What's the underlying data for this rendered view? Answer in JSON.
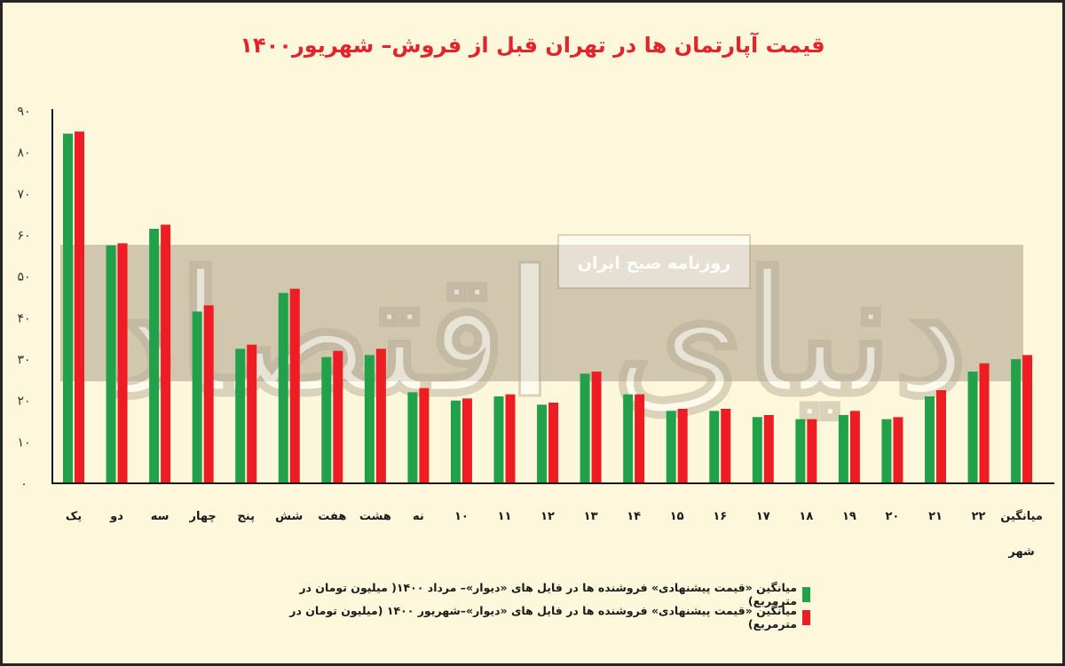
{
  "chart_data": {
    "type": "bar",
    "title": "قیمت آپارتمان ها در تهران قبل از فروش– شهریور۱۴۰۰",
    "categories": [
      "یک",
      "دو",
      "سه",
      "چهار",
      "پنج",
      "شش",
      "هفت",
      "هشت",
      "نه",
      "۱۰",
      "۱۱",
      "۱۲",
      "۱۳",
      "۱۴",
      "۱۵",
      "۱۶",
      "۱۷",
      "۱۸",
      "۱۹",
      "۲۰",
      "۲۱",
      "۲۲",
      "میانگین شهر"
    ],
    "series": [
      {
        "name": "میانگین «قیمت پیشنهادی» فروشنده ها در فایل های «دیوار»– مرداد ۱۴۰۰( میلیون تومان در مترمربع)",
        "color": "#21a24a",
        "values": [
          84.5,
          57.5,
          61.5,
          41.5,
          32.5,
          46,
          30.5,
          31,
          22,
          20,
          21,
          19,
          26.5,
          21.5,
          17.5,
          17.5,
          16,
          15.5,
          16.5,
          15.5,
          21,
          27,
          30
        ]
      },
      {
        "name": "میانگین «قیمت پیشنهادی» فروشنده ها در فایل های «دیوار»–شهریور ۱۴۰۰ (میلیون تومان در مترمربع)",
        "color": "#ee1c23",
        "values": [
          85,
          58,
          62.5,
          43,
          33.5,
          47,
          32,
          32.5,
          23,
          20.5,
          21.5,
          19.5,
          27,
          21.5,
          18,
          18,
          16.5,
          15.5,
          17.5,
          16,
          22.5,
          29,
          31
        ]
      }
    ],
    "y_ticks": [
      "۹۰",
      "۸۰",
      "۷۰",
      "۶۰",
      "۵۰",
      "۴۰",
      "۳۰",
      "۲۰",
      "۱۰",
      "۰"
    ],
    "ylim": [
      0,
      90
    ],
    "legend_position": "bottom",
    "grid": false
  },
  "watermark": {
    "logo_text": "دنیای اقتصاد",
    "tagline": "روزنامه صبح ایران"
  }
}
